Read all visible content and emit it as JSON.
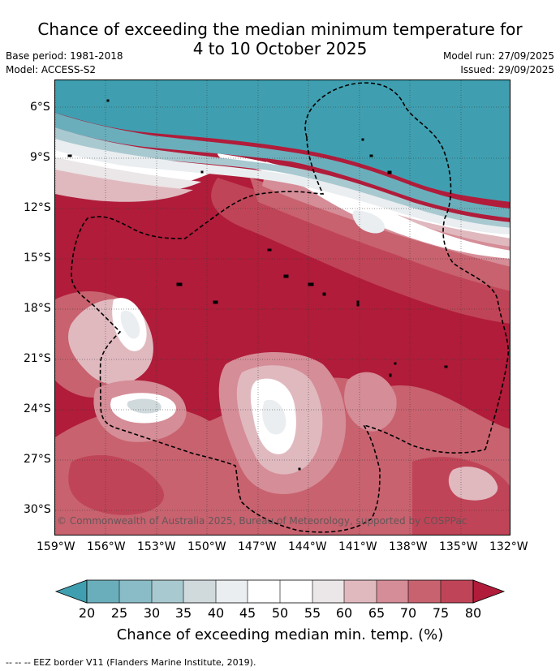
{
  "title": {
    "line1": "Chance of exceeding the median minimum temperature for",
    "line2": "4 to 10 October 2025"
  },
  "meta": {
    "base_period": "Base period: 1981-2018",
    "model": "Model: ACCESS-S2",
    "model_run": "Model run: 27/09/2025",
    "issued": "Issued: 29/09/2025"
  },
  "map": {
    "lat_labels": [
      "6°S",
      "9°S",
      "12°S",
      "15°S",
      "18°S",
      "21°S",
      "24°S",
      "27°S",
      "30°S"
    ],
    "lon_labels": [
      "159°W",
      "156°W",
      "153°W",
      "150°W",
      "147°W",
      "144°W",
      "141°W",
      "138°W",
      "135°W",
      "132°W"
    ],
    "copyright": "© Commonwealth of Australia 2025, Bureau of Meteorology, supported by COSPPac",
    "colors": {
      "below_20": "#3f9fb0",
      "c20_25": "#6aaebb",
      "c25_30": "#89bcc6",
      "c30_35": "#a9c9d0",
      "c35_40": "#d0dadd",
      "c40_45": "#eaeef0",
      "c45_55": "#ffffff",
      "c55_60": "#ebe6e7",
      "c60_65": "#e0b9bf",
      "c65_70": "#d58d97",
      "c70_75": "#c8626f",
      "c75_80": "#c04457",
      "above_80": "#b01c3a"
    }
  },
  "colorbar": {
    "ticks": [
      "20",
      "25",
      "30",
      "35",
      "40",
      "45",
      "50",
      "55",
      "60",
      "65",
      "70",
      "75",
      "80"
    ],
    "title": "Chance of exceeding median min. temp. (%)"
  },
  "footnote": "--  --  -- EEZ border V11 (Flanders Marine Institute, 2019)."
}
